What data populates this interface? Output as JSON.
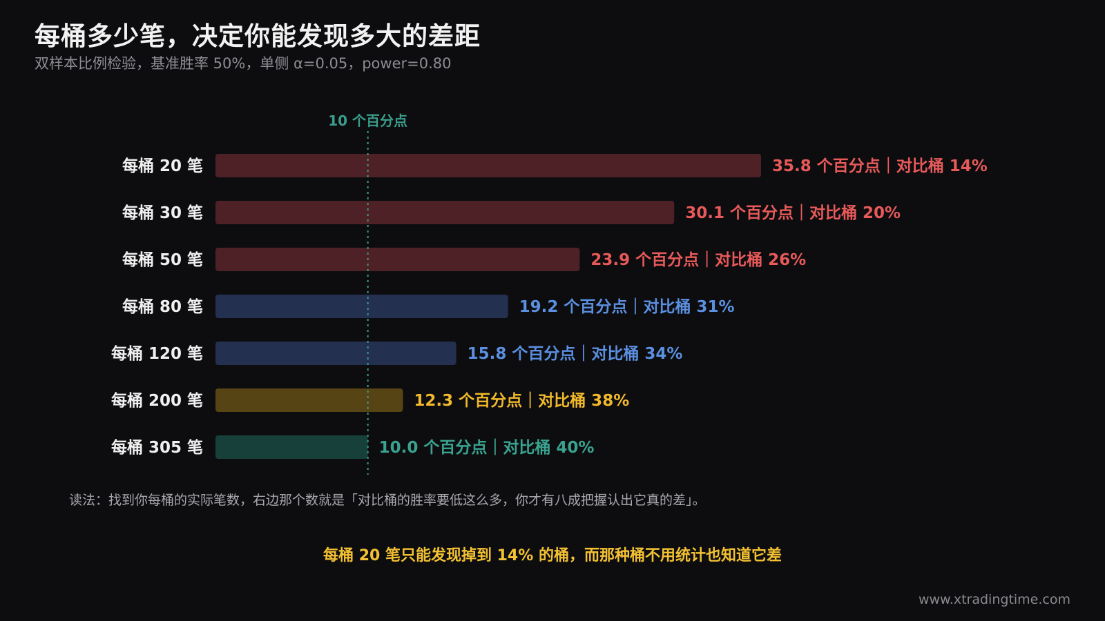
{
  "title": "每桶多少笔，决定你能发现多大的差距",
  "subtitle": "双样本比例检验，基准胜率 50%，单侧 α=0.05，power=0.80",
  "reference_line": {
    "value": 10,
    "label": "10 个百分点",
    "color": "#3a9e8c"
  },
  "chart_data": {
    "type": "bar",
    "orientation": "horizontal",
    "categories": [
      "每桶 20 笔",
      "每桶 30 笔",
      "每桶 50 笔",
      "每桶 80 笔",
      "每桶 120 笔",
      "每桶 200 笔",
      "每桶 305 笔"
    ],
    "values": [
      35.8,
      30.1,
      23.9,
      19.2,
      15.8,
      12.3,
      10.0
    ],
    "value_labels": [
      "35.8 个百分点｜对比桶 14%",
      "30.1 个百分点｜对比桶 20%",
      "23.9 个百分点｜对比桶 26%",
      "19.2 个百分点｜对比桶 31%",
      "15.8 个百分点｜对比桶 34%",
      "12.3 个百分点｜对比桶 38%",
      "10.0 个百分点｜对比桶 40%"
    ],
    "bar_colors": [
      "#4e2126",
      "#4e2126",
      "#4e2126",
      "#23304f",
      "#23304f",
      "#574414",
      "#17403b"
    ],
    "label_colors": [
      "#e85a5a",
      "#e85a5a",
      "#e85a5a",
      "#5b8fe0",
      "#5b8fe0",
      "#f0b92c",
      "#3aa38f"
    ],
    "xlim": [
      0,
      35.8
    ]
  },
  "note": "读法：找到你每桶的实际笔数，右边那个数就是「对比桶的胜率要低这么多，你才有八成把握认出它真的差」。",
  "highlight": "每桶 20 笔只能发现掉到 14% 的桶，而那种桶不用统计也知道它差",
  "watermark": "www.xtradingtime.com"
}
